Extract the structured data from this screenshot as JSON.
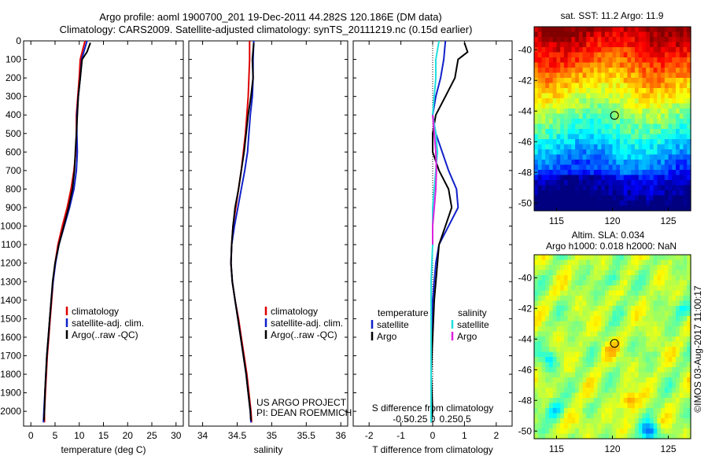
{
  "title": {
    "line1": "Argo profile: aoml 1900700_201 19-Dec-2011 44.282S 120.186E (DM data)",
    "line2": "Climatology: CARS2009. Satellite-adjusted climatology: synTS_20111219.nc (0.15d earlier)"
  },
  "colors": {
    "climatology": "#dd0000",
    "satellite": "#1020c8",
    "argo": "#000000",
    "satellite_s": "#22dede",
    "argo_s": "#dd22dd"
  },
  "chart_data": [
    {
      "id": "temperature",
      "type": "line",
      "xlabel": "temperature (deg C)",
      "xlim": [
        -1.5,
        31.5
      ],
      "xticks": [
        0,
        5,
        10,
        15,
        20,
        25,
        30
      ],
      "xticklabels": [
        "0",
        "5",
        "10",
        "15",
        "20",
        "25",
        "30"
      ],
      "ylim": [
        2080,
        0
      ],
      "yticks": [
        0,
        100,
        200,
        300,
        400,
        500,
        600,
        700,
        800,
        900,
        1000,
        1100,
        1200,
        1300,
        1400,
        1500,
        1600,
        1700,
        1800,
        1900,
        2000
      ],
      "legend": {
        "entries": [
          "climatology",
          "satellite-adj. clim.",
          "Argo(..raw -QC)"
        ]
      },
      "series": [
        {
          "name": "climatology",
          "color": "#dd0000",
          "points": [
            [
              11.2,
              0
            ],
            [
              10.2,
              100
            ],
            [
              10.0,
              200
            ],
            [
              9.7,
              300
            ],
            [
              9.4,
              400
            ],
            [
              9.4,
              500
            ],
            [
              9.3,
              600
            ],
            [
              8.9,
              700
            ],
            [
              8.3,
              800
            ],
            [
              7.5,
              900
            ],
            [
              6.5,
              1000
            ],
            [
              5.6,
              1100
            ],
            [
              5.0,
              1200
            ],
            [
              4.6,
              1300
            ],
            [
              4.3,
              1400
            ],
            [
              4.0,
              1500
            ],
            [
              3.7,
              1600
            ],
            [
              3.4,
              1700
            ],
            [
              3.2,
              1800
            ],
            [
              3.0,
              1900
            ],
            [
              2.8,
              2000
            ],
            [
              2.8,
              2060
            ]
          ]
        },
        {
          "name": "satellite-adj. clim.",
          "color": "#1020c8",
          "points": [
            [
              11.6,
              0
            ],
            [
              10.5,
              100
            ],
            [
              10.2,
              200
            ],
            [
              9.8,
              300
            ],
            [
              9.5,
              400
            ],
            [
              9.5,
              500
            ],
            [
              9.6,
              600
            ],
            [
              9.4,
              700
            ],
            [
              8.9,
              800
            ],
            [
              8.0,
              900
            ],
            [
              6.9,
              1000
            ],
            [
              5.8,
              1100
            ],
            [
              5.1,
              1200
            ],
            [
              4.6,
              1300
            ],
            [
              4.2,
              1400
            ],
            [
              3.9,
              1500
            ],
            [
              3.6,
              1600
            ],
            [
              3.3,
              1700
            ],
            [
              3.1,
              1800
            ],
            [
              2.9,
              1900
            ],
            [
              2.7,
              2000
            ],
            [
              2.6,
              2060
            ]
          ]
        },
        {
          "name": "Argo(..raw -QC)",
          "color": "#000000",
          "points": [
            [
              12.3,
              10
            ],
            [
              11.6,
              60
            ],
            [
              10.6,
              100
            ],
            [
              10.2,
              200
            ],
            [
              9.8,
              300
            ],
            [
              9.6,
              400
            ],
            [
              9.4,
              500
            ],
            [
              9.2,
              600
            ],
            [
              9.0,
              700
            ],
            [
              8.6,
              800
            ],
            [
              7.8,
              900
            ],
            [
              6.8,
              1000
            ],
            [
              5.8,
              1100
            ],
            [
              5.0,
              1200
            ],
            [
              4.5,
              1300
            ],
            [
              4.2,
              1400
            ],
            [
              3.9,
              1500
            ],
            [
              3.6,
              1600
            ],
            [
              3.3,
              1700
            ],
            [
              3.1,
              1800
            ],
            [
              2.9,
              1900
            ],
            [
              2.8,
              2000
            ],
            [
              2.7,
              2050
            ]
          ]
        }
      ]
    },
    {
      "id": "salinity",
      "type": "line",
      "xlabel": "salinity",
      "xlim": [
        33.8,
        36.1
      ],
      "xticks": [
        34,
        34.5,
        35,
        35.5,
        36
      ],
      "xticklabels": [
        "34",
        "34.5",
        "35",
        "35.5",
        "36"
      ],
      "ylim": [
        2080,
        0
      ],
      "legend": {
        "entries": [
          "climatology",
          "satellite-adj. clim.",
          "Argo(..raw -QC)"
        ]
      },
      "annotation": [
        "US ARGO PROJECT",
        "PI: DEAN ROEMMICH"
      ],
      "series": [
        {
          "name": "climatology",
          "color": "#dd0000",
          "points": [
            [
              34.68,
              0
            ],
            [
              34.68,
              100
            ],
            [
              34.67,
              200
            ],
            [
              34.66,
              300
            ],
            [
              34.64,
              400
            ],
            [
              34.62,
              500
            ],
            [
              34.59,
              600
            ],
            [
              34.56,
              700
            ],
            [
              34.52,
              800
            ],
            [
              34.48,
              900
            ],
            [
              34.44,
              1000
            ],
            [
              34.42,
              1100
            ],
            [
              34.41,
              1200
            ],
            [
              34.43,
              1300
            ],
            [
              34.47,
              1400
            ],
            [
              34.52,
              1500
            ],
            [
              34.56,
              1600
            ],
            [
              34.6,
              1700
            ],
            [
              34.64,
              1800
            ],
            [
              34.67,
              1900
            ],
            [
              34.7,
              2000
            ],
            [
              34.71,
              2060
            ]
          ]
        },
        {
          "name": "satellite-adj. clim.",
          "color": "#1020c8",
          "points": [
            [
              34.74,
              0
            ],
            [
              34.73,
              100
            ],
            [
              34.73,
              200
            ],
            [
              34.72,
              300
            ],
            [
              34.69,
              400
            ],
            [
              34.67,
              500
            ],
            [
              34.65,
              600
            ],
            [
              34.61,
              700
            ],
            [
              34.56,
              800
            ],
            [
              34.51,
              900
            ],
            [
              34.46,
              1000
            ],
            [
              34.42,
              1100
            ],
            [
              34.41,
              1200
            ],
            [
              34.43,
              1300
            ],
            [
              34.47,
              1400
            ],
            [
              34.51,
              1500
            ],
            [
              34.55,
              1600
            ],
            [
              34.59,
              1700
            ],
            [
              34.63,
              1800
            ],
            [
              34.66,
              1900
            ],
            [
              34.69,
              2000
            ],
            [
              34.7,
              2060
            ]
          ]
        },
        {
          "name": "Argo(..raw -QC)",
          "color": "#000000",
          "points": [
            [
              34.74,
              10
            ],
            [
              34.72,
              100
            ],
            [
              34.73,
              200
            ],
            [
              34.7,
              300
            ],
            [
              34.66,
              400
            ],
            [
              34.63,
              500
            ],
            [
              34.6,
              600
            ],
            [
              34.56,
              700
            ],
            [
              34.52,
              800
            ],
            [
              34.47,
              900
            ],
            [
              34.44,
              1000
            ],
            [
              34.42,
              1100
            ],
            [
              34.41,
              1200
            ],
            [
              34.43,
              1300
            ],
            [
              34.47,
              1400
            ],
            [
              34.51,
              1500
            ],
            [
              34.55,
              1600
            ],
            [
              34.59,
              1700
            ],
            [
              34.63,
              1800
            ],
            [
              34.66,
              1900
            ],
            [
              34.69,
              2000
            ],
            [
              34.7,
              2050
            ]
          ]
        }
      ]
    },
    {
      "id": "difference",
      "type": "line",
      "xlabel": "T difference from climatology",
      "xlabel_top": "S difference from climatology",
      "xlim": [
        -2.5,
        2.5
      ],
      "xticks": [
        -2,
        -1,
        0,
        1,
        2
      ],
      "xticklabels": [
        "-2",
        "-1",
        "0",
        "1",
        "2"
      ],
      "sticks": [
        -1,
        -0.5,
        0,
        0.5,
        1
      ],
      "sticklabels": [
        "-0.5",
        "-0.25",
        "0",
        "0.25",
        "0.5"
      ],
      "ylim": [
        2080,
        0
      ],
      "legend": {
        "headers": [
          "temperature",
          "salinity"
        ],
        "temperature": [
          "satellite",
          "Argo"
        ],
        "salinity": [
          "satellite",
          "Argo"
        ]
      },
      "series": [
        {
          "name": "temperature satellite",
          "color": "#1020c8",
          "points": [
            [
              0.4,
              0
            ],
            [
              0.35,
              100
            ],
            [
              0.25,
              200
            ],
            [
              0.1,
              300
            ],
            [
              0.0,
              400
            ],
            [
              0.1,
              500
            ],
            [
              0.3,
              600
            ],
            [
              0.5,
              700
            ],
            [
              0.75,
              800
            ],
            [
              0.8,
              900
            ],
            [
              0.5,
              1000
            ],
            [
              0.2,
              1100
            ],
            [
              0.1,
              1200
            ],
            [
              0.0,
              1400
            ],
            [
              -0.05,
              1600
            ],
            [
              -0.05,
              1800
            ],
            [
              -0.05,
              2000
            ],
            [
              -0.05,
              2060
            ]
          ]
        },
        {
          "name": "temperature Argo",
          "color": "#000000",
          "points": [
            [
              1.0,
              10
            ],
            [
              1.1,
              60
            ],
            [
              0.8,
              100
            ],
            [
              0.7,
              200
            ],
            [
              0.4,
              300
            ],
            [
              0.1,
              400
            ],
            [
              0.0,
              500
            ],
            [
              0.0,
              600
            ],
            [
              0.2,
              700
            ],
            [
              0.5,
              800
            ],
            [
              0.6,
              900
            ],
            [
              0.4,
              1000
            ],
            [
              0.2,
              1100
            ],
            [
              0.15,
              1200
            ],
            [
              0.05,
              1400
            ],
            [
              0.0,
              1600
            ],
            [
              -0.05,
              1800
            ],
            [
              0.0,
              2000
            ],
            [
              -0.05,
              2060
            ]
          ]
        },
        {
          "name": "salinity satellite",
          "color": "#22dede",
          "points": [
            [
              0.2,
              0
            ],
            [
              0.1,
              100
            ],
            [
              0.1,
              200
            ],
            [
              0.05,
              300
            ],
            [
              0.0,
              400
            ],
            [
              0.1,
              500
            ],
            [
              0.15,
              600
            ],
            [
              0.1,
              700
            ],
            [
              0.05,
              800
            ],
            [
              0.0,
              900
            ],
            [
              0.0,
              1100
            ],
            [
              -0.05,
              1300
            ],
            [
              -0.05,
              1600
            ],
            [
              -0.05,
              1800
            ],
            [
              -0.05,
              2000
            ],
            [
              -0.05,
              2060
            ]
          ]
        },
        {
          "name": "salinity Argo",
          "color": "#dd22dd",
          "points": [
            [
              0.0,
              400
            ],
            [
              0.05,
              500
            ],
            [
              0.1,
              600
            ],
            [
              0.12,
              700
            ],
            [
              0.1,
              800
            ],
            [
              0.05,
              900
            ],
            [
              0.0,
              1000
            ],
            [
              0.0,
              1100
            ]
          ]
        }
      ]
    },
    {
      "id": "sst_map",
      "type": "heatmap",
      "title": "sat. SST: 11.2  Argo: 11.9",
      "xlim": [
        113,
        127
      ],
      "ylim": [
        -50.5,
        -38.5
      ],
      "xticks": [
        115,
        120,
        125
      ],
      "xticklabels": [
        "115",
        "120",
        "125"
      ],
      "yticks": [
        -40,
        -42,
        -44,
        -46,
        -48,
        -50
      ],
      "yticklabels": [
        "-40",
        "-42",
        "-44",
        "-46",
        "-48",
        "-50"
      ],
      "marker": [
        120.186,
        -44.282
      ]
    },
    {
      "id": "sla_map",
      "type": "heatmap",
      "title": "Altim. SLA: 0.034",
      "subtitle": "Argo h1000: 0.018 h2000: NaN",
      "xlim": [
        113,
        127
      ],
      "ylim": [
        -50.5,
        -38.5
      ],
      "xticks": [
        115,
        120,
        125
      ],
      "xticklabels": [
        "115",
        "120",
        "125"
      ],
      "yticks": [
        -40,
        -42,
        -44,
        -46,
        -48,
        -50
      ],
      "yticklabels": [
        "-40",
        "-42",
        "-44",
        "-46",
        "-48",
        "-50"
      ],
      "marker": [
        120.186,
        -44.282
      ]
    }
  ],
  "watermark": "©IMOS 03-Aug-2017 11:00:17"
}
